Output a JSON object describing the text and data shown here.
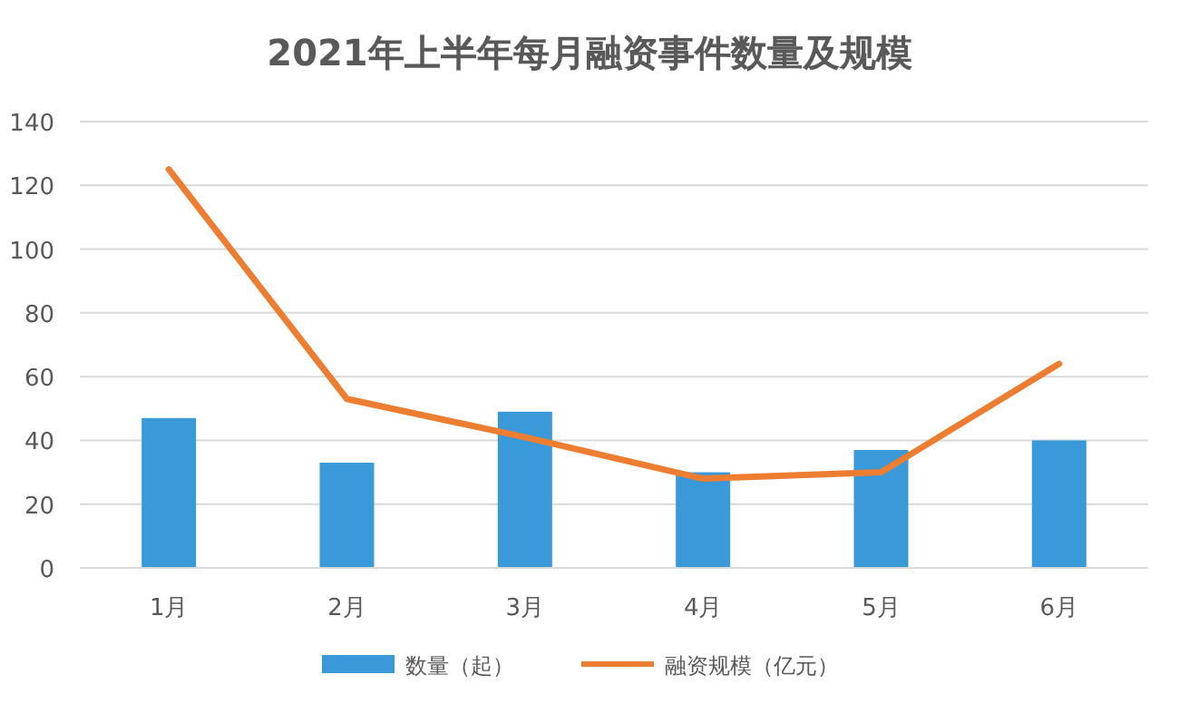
{
  "chart_data": {
    "type": "bar",
    "title": "2021年上半年每月融资事件数量及规模",
    "categories": [
      "1月",
      "2月",
      "3月",
      "4月",
      "5月",
      "6月"
    ],
    "series": [
      {
        "name": "数量（起）",
        "color": "#3a9ad9",
        "values": [
          47,
          33,
          49,
          30,
          37,
          40
        ]
      },
      {
        "name": "融资规模（亿元）",
        "type": "line",
        "color": "#ed7d31",
        "values": [
          125,
          53,
          41,
          28,
          30,
          64
        ]
      }
    ],
    "ylim": [
      0,
      140
    ],
    "yticks": [
      0,
      20,
      40,
      60,
      80,
      100,
      120,
      140
    ],
    "grid": "y",
    "legend": "bottom",
    "marker": "none"
  }
}
